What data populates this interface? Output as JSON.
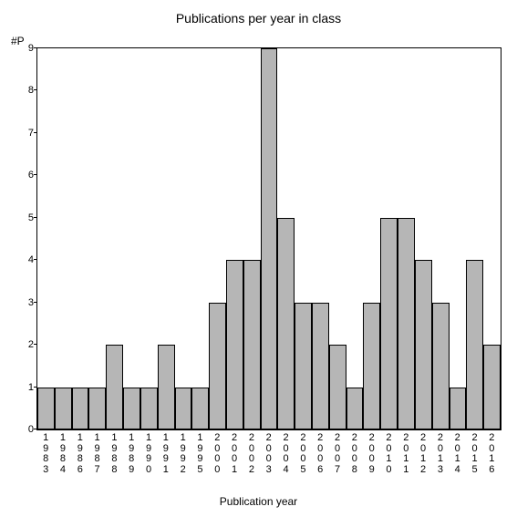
{
  "chart": {
    "type": "bar",
    "title": "Publications per year in class",
    "title_fontsize": 14,
    "ylabel": "#P",
    "xlabel": "Publication year",
    "label_fontsize": 12,
    "tick_fontsize": 11,
    "background_color": "#ffffff",
    "bar_fill": "#b6b6b6",
    "bar_border": "#000000",
    "axis_color": "#000000",
    "ylim": [
      0,
      9
    ],
    "ytick_step": 1,
    "yticks": [
      0,
      1,
      2,
      3,
      4,
      5,
      6,
      7,
      8,
      9
    ],
    "bar_width": 1.0,
    "categories": [
      "1983",
      "1984",
      "1986",
      "1987",
      "1988",
      "1989",
      "1990",
      "1991",
      "1992",
      "1995",
      "2000",
      "2001",
      "2002",
      "2003",
      "2004",
      "2005",
      "2006",
      "2007",
      "2008",
      "2009",
      "2010",
      "2011",
      "2012",
      "2013",
      "2014",
      "2015",
      "2016"
    ],
    "values": [
      1,
      1,
      1,
      1,
      2,
      1,
      1,
      2,
      1,
      1,
      3,
      4,
      4,
      9,
      5,
      3,
      3,
      2,
      1,
      3,
      5,
      5,
      4,
      3,
      1,
      4,
      2
    ]
  }
}
